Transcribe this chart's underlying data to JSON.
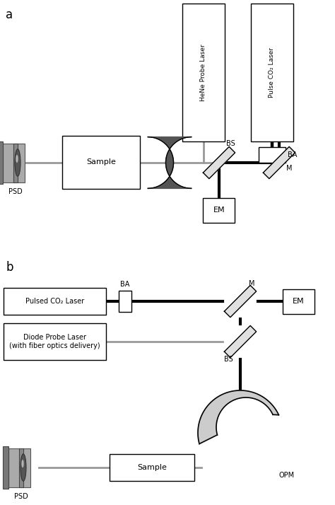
{
  "bg_color": "#ffffff",
  "line_color": "#000000",
  "gray_color": "#999999",
  "label_a": "a",
  "label_b": "b",
  "panel_a": {
    "hene_label": "HeNe Probe Laser",
    "co2_label": "Pulse CO₂ Laser",
    "ba_label": "BA",
    "bs_label": "BS",
    "m_label": "M",
    "em_label": "EM",
    "sample_label": "Sample",
    "psd_label": "PSD"
  },
  "panel_b": {
    "co2_label": "Pulsed CO₂ Laser",
    "diode_label": "Diode Probe Laser\n(with fiber optics delivery)",
    "ba_label": "BA",
    "bs_label": "BS",
    "m_label": "M",
    "em_label": "EM",
    "sample_label": "Sample",
    "psd_label": "PSD",
    "opm_label": "OPM"
  }
}
